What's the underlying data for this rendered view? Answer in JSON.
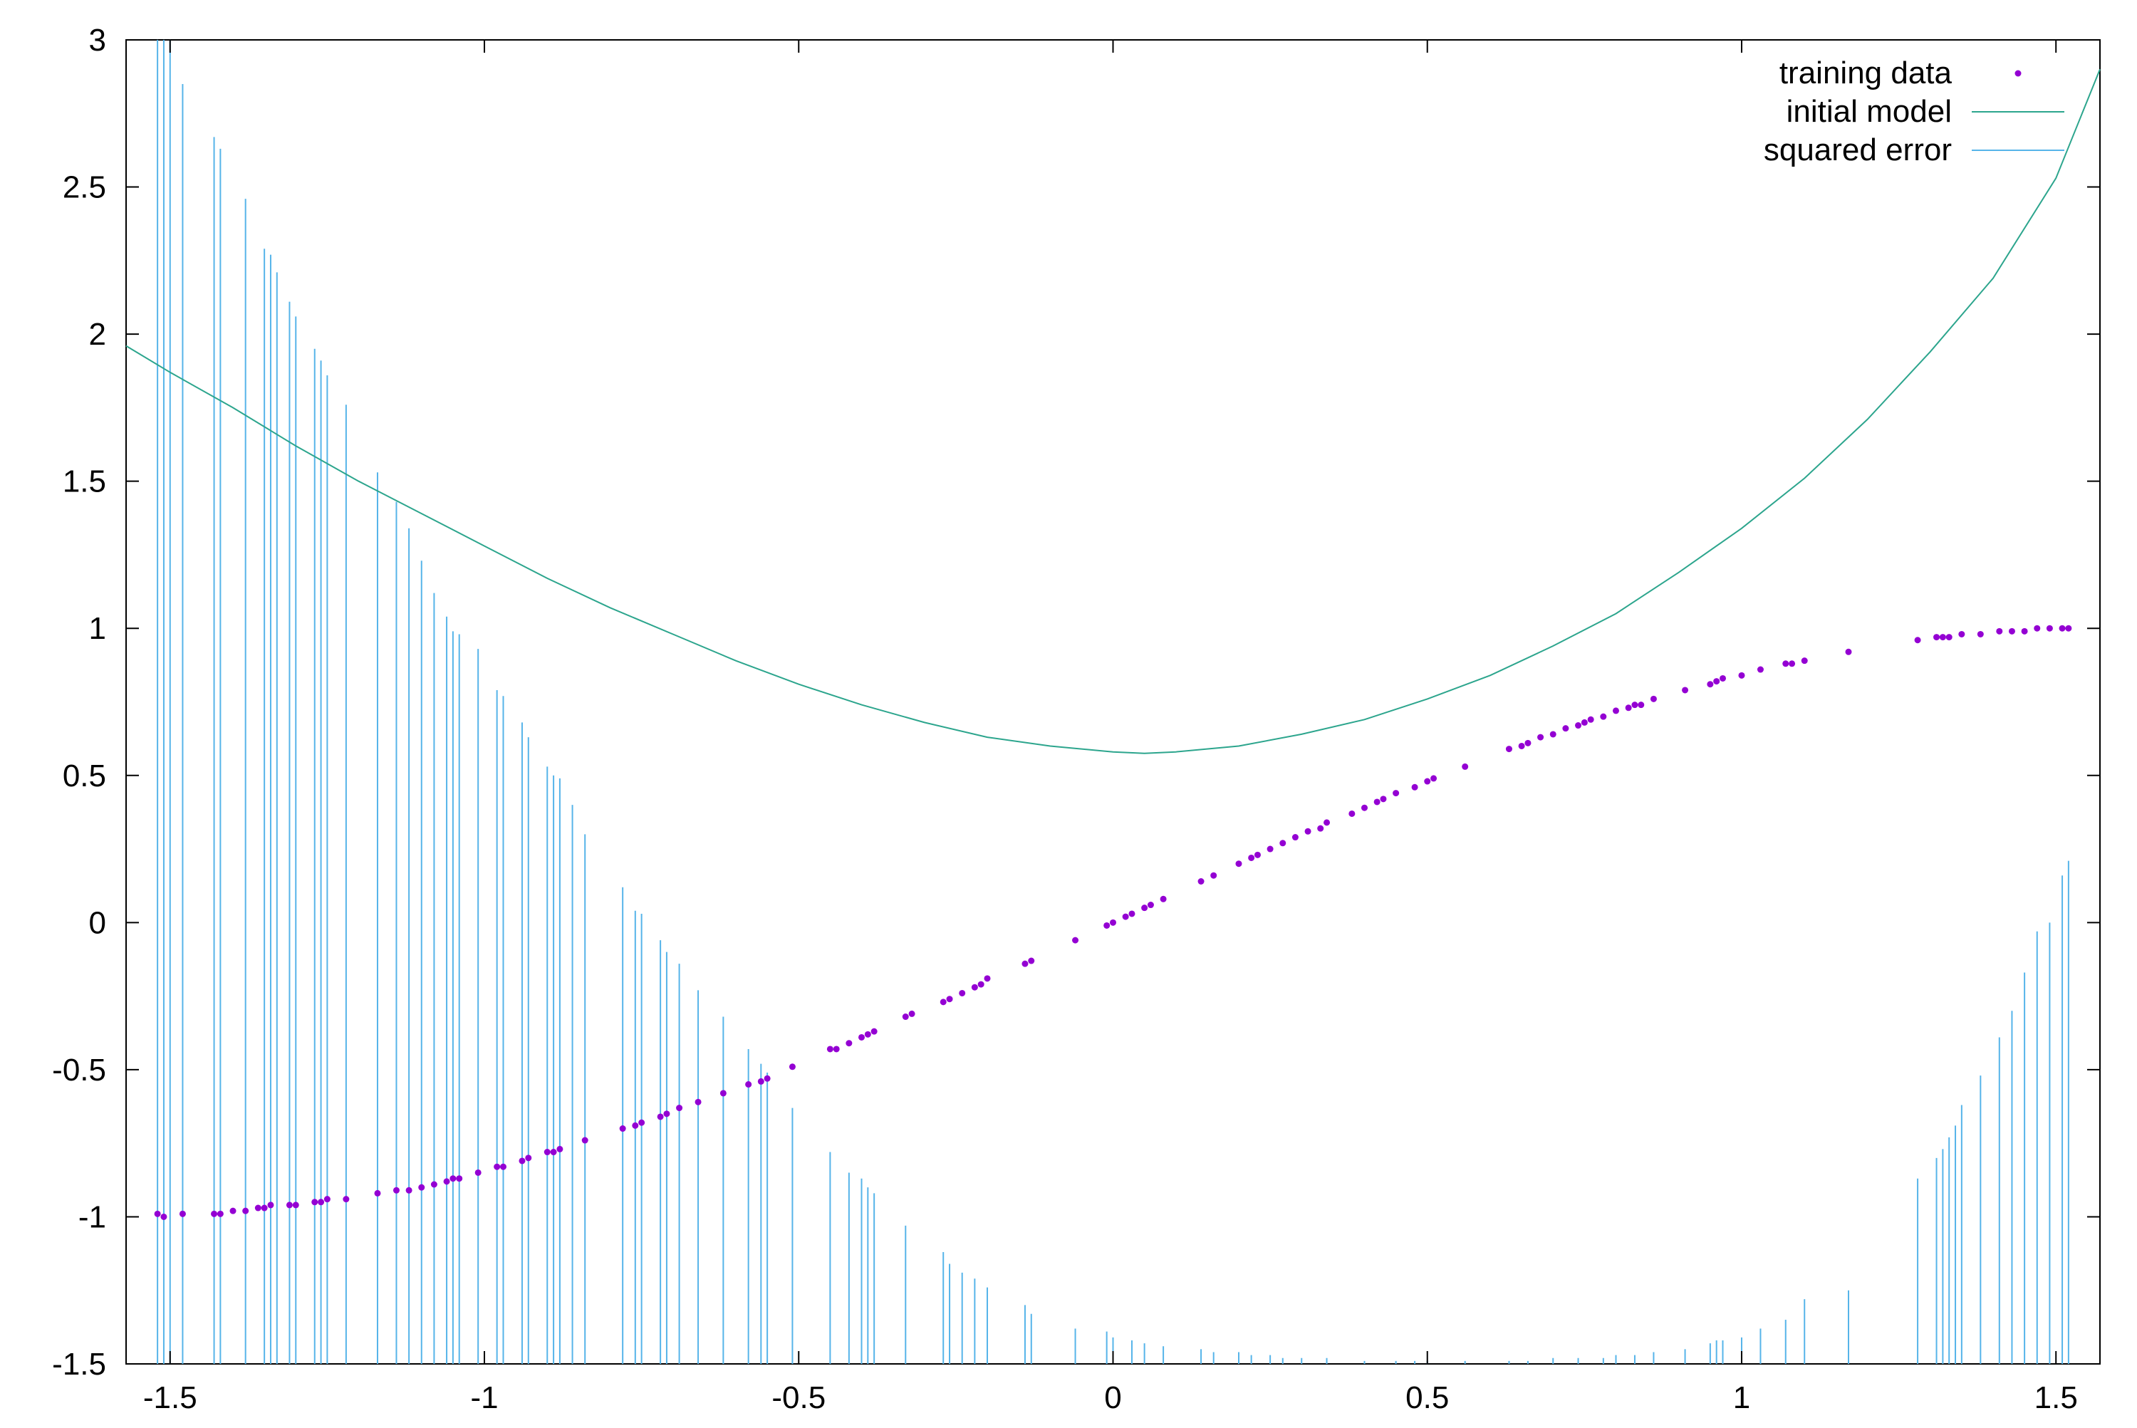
{
  "chart_data": {
    "type": "line",
    "title": "",
    "xlabel": "",
    "ylabel": "",
    "xlim": [
      -1.57,
      1.57
    ],
    "ylim": [
      -1.5,
      3
    ],
    "x_ticks": [
      -1.5,
      -1,
      -0.5,
      0,
      0.5,
      1,
      1.5
    ],
    "y_ticks": [
      -1.5,
      -1,
      -0.5,
      0,
      0.5,
      1,
      1.5,
      2,
      2.5,
      3
    ],
    "x_tick_labels": [
      "-1.5",
      "-1",
      "-0.5",
      "0",
      "0.5",
      "1",
      "1.5"
    ],
    "y_tick_labels": [
      "-1.5",
      "-1",
      "-0.5",
      "0",
      "0.5",
      "1",
      "1.5",
      "2",
      "2.5",
      "3"
    ],
    "legend_position": "top-right",
    "series": [
      {
        "name": "training data",
        "kind": "points",
        "color": "#9400d3",
        "x": [
          -1.52,
          -1.51,
          -1.48,
          -1.43,
          -1.42,
          -1.4,
          -1.38,
          -1.36,
          -1.35,
          -1.34,
          -1.31,
          -1.3,
          -1.27,
          -1.26,
          -1.25,
          -1.22,
          -1.17,
          -1.14,
          -1.12,
          -1.1,
          -1.08,
          -1.06,
          -1.05,
          -1.04,
          -1.01,
          -0.98,
          -0.97,
          -0.94,
          -0.93,
          -0.9,
          -0.89,
          -0.88,
          -0.84,
          -0.78,
          -0.76,
          -0.75,
          -0.72,
          -0.71,
          -0.69,
          -0.66,
          -0.62,
          -0.58,
          -0.56,
          -0.55,
          -0.51,
          -0.45,
          -0.44,
          -0.42,
          -0.4,
          -0.39,
          -0.38,
          -0.33,
          -0.32,
          -0.27,
          -0.26,
          -0.24,
          -0.22,
          -0.21,
          -0.2,
          -0.14,
          -0.13,
          -0.06,
          -0.01,
          0.0,
          0.02,
          0.03,
          0.05,
          0.06,
          0.08,
          0.14,
          0.16,
          0.2,
          0.22,
          0.23,
          0.25,
          0.27,
          0.29,
          0.31,
          0.33,
          0.34,
          0.38,
          0.4,
          0.42,
          0.43,
          0.45,
          0.48,
          0.5,
          0.51,
          0.56,
          0.63,
          0.65,
          0.66,
          0.68,
          0.7,
          0.72,
          0.74,
          0.75,
          0.76,
          0.78,
          0.8,
          0.82,
          0.83,
          0.84,
          0.86,
          0.91,
          0.95,
          0.96,
          0.97,
          1.0,
          1.03,
          1.07,
          1.08,
          1.1,
          1.17,
          1.28,
          1.31,
          1.32,
          1.33,
          1.35,
          1.38,
          1.41,
          1.43,
          1.45,
          1.47,
          1.49,
          1.51,
          1.52
        ],
        "y": [
          -0.99,
          -1.0,
          -0.99,
          -0.99,
          -0.99,
          -0.98,
          -0.98,
          -0.97,
          -0.97,
          -0.96,
          -0.96,
          -0.96,
          -0.95,
          -0.95,
          -0.94,
          -0.94,
          -0.92,
          -0.91,
          -0.91,
          -0.9,
          -0.89,
          -0.88,
          -0.87,
          -0.87,
          -0.85,
          -0.83,
          -0.83,
          -0.81,
          -0.8,
          -0.78,
          -0.78,
          -0.77,
          -0.74,
          -0.7,
          -0.69,
          -0.68,
          -0.66,
          -0.65,
          -0.63,
          -0.61,
          -0.58,
          -0.55,
          -0.54,
          -0.53,
          -0.49,
          -0.43,
          -0.43,
          -0.41,
          -0.39,
          -0.38,
          -0.37,
          -0.32,
          -0.31,
          -0.27,
          -0.26,
          -0.24,
          -0.22,
          -0.21,
          -0.19,
          -0.14,
          -0.13,
          -0.06,
          -0.01,
          0.0,
          0.02,
          0.03,
          0.05,
          0.06,
          0.08,
          0.14,
          0.16,
          0.2,
          0.22,
          0.23,
          0.25,
          0.27,
          0.29,
          0.31,
          0.32,
          0.34,
          0.37,
          0.39,
          0.41,
          0.42,
          0.44,
          0.46,
          0.48,
          0.49,
          0.53,
          0.59,
          0.6,
          0.61,
          0.63,
          0.64,
          0.66,
          0.67,
          0.68,
          0.69,
          0.7,
          0.72,
          0.73,
          0.74,
          0.74,
          0.76,
          0.79,
          0.81,
          0.82,
          0.83,
          0.84,
          0.86,
          0.88,
          0.88,
          0.89,
          0.92,
          0.96,
          0.97,
          0.97,
          0.97,
          0.98,
          0.98,
          0.99,
          0.99,
          0.99,
          1.0,
          1.0,
          1.0,
          1.0
        ]
      },
      {
        "name": "initial model",
        "kind": "curve",
        "color": "#2ca58d",
        "x": [
          -1.57,
          -1.5,
          -1.4,
          -1.3,
          -1.2,
          -1.1,
          -1.0,
          -0.9,
          -0.8,
          -0.7,
          -0.6,
          -0.5,
          -0.4,
          -0.3,
          -0.2,
          -0.1,
          0.0,
          0.05,
          0.1,
          0.2,
          0.3,
          0.4,
          0.5,
          0.6,
          0.7,
          0.8,
          0.9,
          1.0,
          1.1,
          1.2,
          1.3,
          1.4,
          1.5,
          1.57
        ],
        "y": [
          1.96,
          1.87,
          1.75,
          1.62,
          1.5,
          1.39,
          1.28,
          1.17,
          1.07,
          0.98,
          0.89,
          0.81,
          0.74,
          0.68,
          0.63,
          0.6,
          0.58,
          0.575,
          0.58,
          0.6,
          0.64,
          0.69,
          0.76,
          0.84,
          0.94,
          1.05,
          1.19,
          1.34,
          1.51,
          1.71,
          1.94,
          2.19,
          2.53,
          2.9
        ]
      },
      {
        "name": "squared error",
        "kind": "impulses",
        "color": "#56b4e9",
        "x": [
          -1.52,
          -1.51,
          -1.5,
          -1.48,
          -1.43,
          -1.42,
          -1.38,
          -1.35,
          -1.34,
          -1.33,
          -1.31,
          -1.3,
          -1.27,
          -1.26,
          -1.25,
          -1.22,
          -1.17,
          -1.14,
          -1.12,
          -1.1,
          -1.08,
          -1.06,
          -1.05,
          -1.04,
          -1.01,
          -0.98,
          -0.97,
          -0.94,
          -0.93,
          -0.9,
          -0.89,
          -0.88,
          -0.86,
          -0.84,
          -0.78,
          -0.76,
          -0.75,
          -0.72,
          -0.71,
          -0.69,
          -0.66,
          -0.62,
          -0.58,
          -0.56,
          -0.55,
          -0.51,
          -0.45,
          -0.42,
          -0.4,
          -0.39,
          -0.38,
          -0.33,
          -0.27,
          -0.26,
          -0.24,
          -0.22,
          -0.2,
          -0.14,
          -0.13,
          -0.06,
          -0.01,
          0.0,
          0.03,
          0.05,
          0.08,
          0.14,
          0.16,
          0.2,
          0.22,
          0.25,
          0.27,
          0.3,
          0.34,
          0.4,
          0.45,
          0.48,
          0.5,
          0.56,
          0.63,
          0.66,
          0.7,
          0.74,
          0.78,
          0.8,
          0.83,
          0.86,
          0.91,
          0.95,
          0.96,
          0.97,
          1.0,
          1.03,
          1.07,
          1.1,
          1.17,
          1.28,
          1.31,
          1.32,
          1.33,
          1.34,
          1.35,
          1.38,
          1.41,
          1.43,
          1.45,
          1.47,
          1.49,
          1.51,
          1.52
        ],
        "y": [
          3.0,
          3.0,
          3.0,
          2.85,
          2.67,
          2.63,
          2.46,
          2.29,
          2.27,
          2.21,
          2.11,
          2.06,
          1.95,
          1.91,
          1.86,
          1.76,
          1.53,
          1.43,
          1.34,
          1.23,
          1.12,
          1.04,
          0.99,
          0.98,
          0.93,
          0.79,
          0.77,
          0.68,
          0.63,
          0.53,
          0.5,
          0.49,
          0.4,
          0.3,
          0.12,
          0.04,
          0.03,
          -0.06,
          -0.1,
          -0.14,
          -0.23,
          -0.32,
          -0.43,
          -0.48,
          -0.51,
          -0.63,
          -0.78,
          -0.85,
          -0.87,
          -0.9,
          -0.92,
          -1.03,
          -1.12,
          -1.16,
          -1.19,
          -1.21,
          -1.24,
          -1.3,
          -1.33,
          -1.38,
          -1.39,
          -1.41,
          -1.42,
          -1.43,
          -1.44,
          -1.45,
          -1.46,
          -1.46,
          -1.47,
          -1.47,
          -1.48,
          -1.48,
          -1.48,
          -1.49,
          -1.49,
          -1.49,
          -1.49,
          -1.49,
          -1.49,
          -1.49,
          -1.48,
          -1.48,
          -1.48,
          -1.47,
          -1.47,
          -1.46,
          -1.45,
          -1.43,
          -1.42,
          -1.42,
          -1.41,
          -1.38,
          -1.35,
          -1.28,
          -1.25,
          -0.87,
          -0.8,
          -0.77,
          -0.73,
          -0.69,
          -0.62,
          -0.52,
          -0.39,
          -0.3,
          -0.17,
          -0.03,
          0.0,
          0.16,
          0.21
        ]
      }
    ]
  }
}
